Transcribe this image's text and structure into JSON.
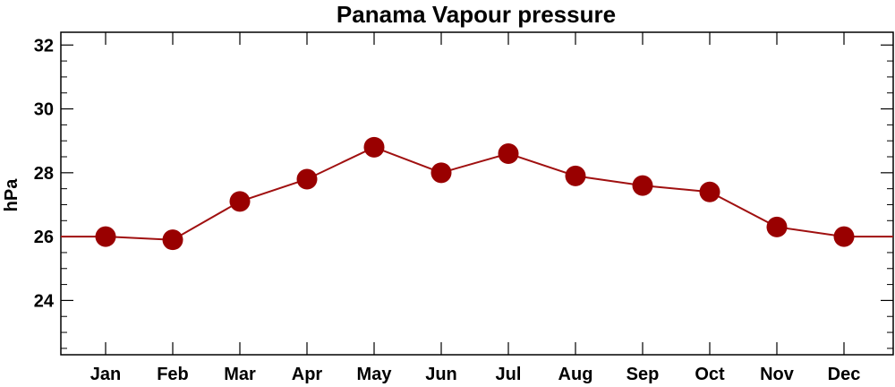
{
  "chart_data": {
    "type": "line",
    "title": "Panama Vapour pressure",
    "xlabel": "",
    "ylabel": "hPa",
    "categories": [
      "Jan",
      "Feb",
      "Mar",
      "Apr",
      "May",
      "Jun",
      "Jul",
      "Aug",
      "Sep",
      "Oct",
      "Nov",
      "Dec"
    ],
    "series": [
      {
        "values": [
          26.0,
          25.9,
          27.1,
          27.8,
          28.8,
          28.0,
          28.6,
          27.9,
          27.6,
          27.4,
          26.3,
          26.0
        ]
      }
    ],
    "ylim": [
      22.3,
      32.4
    ],
    "yticks": [
      "24",
      "26",
      "28",
      "30",
      "32"
    ],
    "line_color": "#a01010",
    "marker_color": "#990000",
    "grid": false
  }
}
